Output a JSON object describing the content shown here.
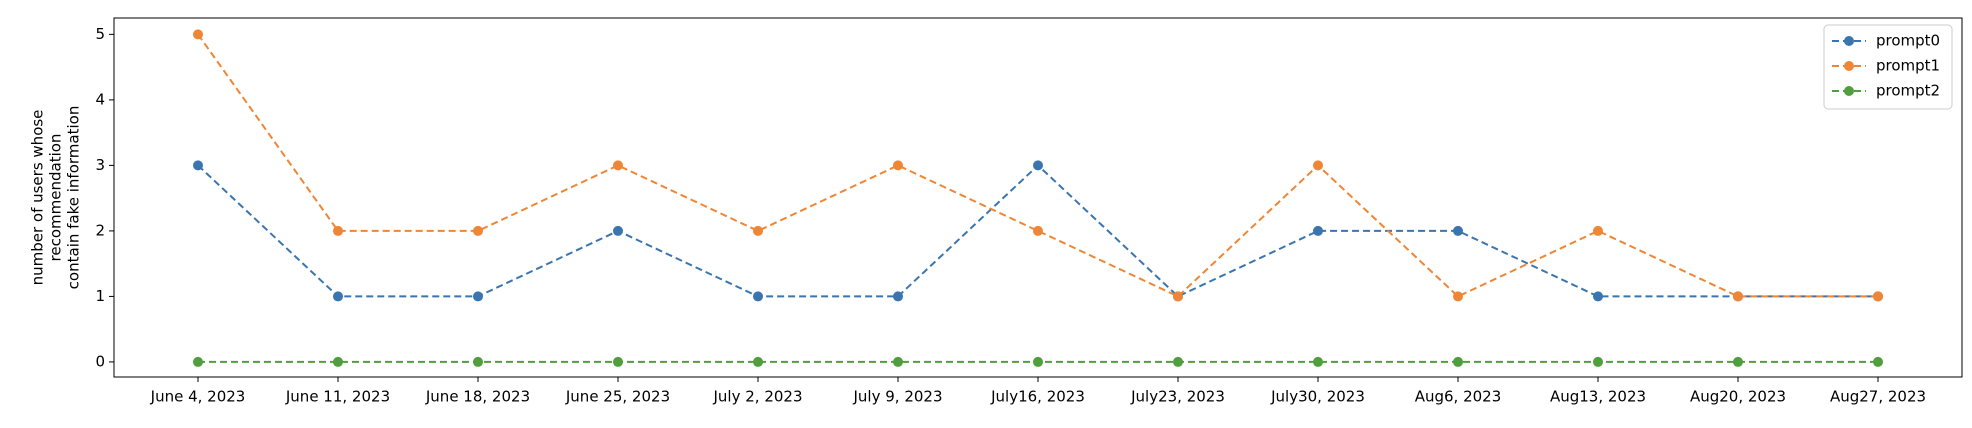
{
  "chart_data": {
    "type": "line",
    "y_label": [
      "number of users whose",
      "recommendation",
      "contain fake information"
    ],
    "categories": [
      "June 4, 2023",
      "June 11, 2023",
      "June 18, 2023",
      "June 25, 2023",
      "July 2, 2023",
      "July 9, 2023",
      "July16, 2023",
      "July23, 2023",
      "July30, 2023",
      "Aug6, 2023",
      "Aug13, 2023",
      "Aug20, 2023",
      "Aug27, 2023"
    ],
    "series": [
      {
        "name": "prompt0",
        "color": "#3b75af",
        "values": [
          3,
          1,
          1,
          2,
          1,
          1,
          3,
          1,
          2,
          2,
          1,
          1,
          1
        ]
      },
      {
        "name": "prompt1",
        "color": "#ef8636",
        "values": [
          5,
          2,
          2,
          3,
          2,
          3,
          2,
          1,
          3,
          1,
          2,
          1,
          1
        ]
      },
      {
        "name": "prompt2",
        "color": "#519e3e",
        "values": [
          0,
          0,
          0,
          0,
          0,
          0,
          0,
          0,
          0,
          0,
          0,
          0,
          0
        ]
      }
    ],
    "ylim": [
      -0.23,
      5.25
    ],
    "yticks": [
      0,
      1,
      2,
      3,
      4,
      5
    ],
    "legend": "upper right"
  }
}
